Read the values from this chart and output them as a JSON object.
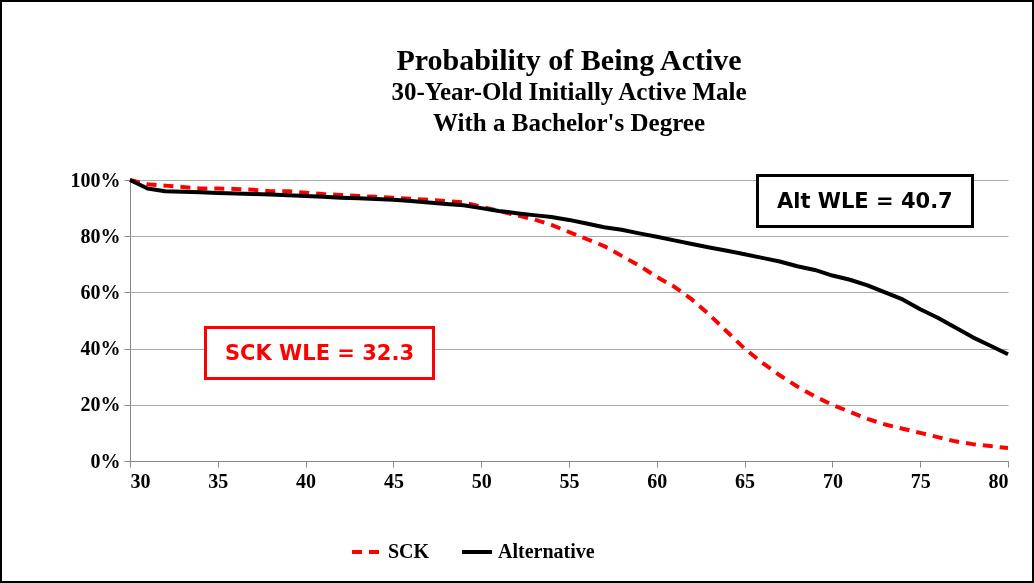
{
  "chart_data": {
    "type": "line",
    "title": "Probability of Being Active",
    "subtitle": "30-Year-Old Initially Active Male\nWith a Bachelor's Degree",
    "x": [
      30,
      31,
      32,
      33,
      34,
      35,
      36,
      37,
      38,
      39,
      40,
      41,
      42,
      43,
      44,
      45,
      46,
      47,
      48,
      49,
      50,
      51,
      52,
      53,
      54,
      55,
      56,
      57,
      58,
      59,
      60,
      61,
      62,
      63,
      64,
      65,
      66,
      67,
      68,
      69,
      70,
      71,
      72,
      73,
      74,
      75,
      76,
      77,
      78,
      79,
      80
    ],
    "series": [
      {
        "name": "SCK",
        "color": "#ff0000",
        "line_style": "dashed",
        "values": [
          100,
          98.5,
          98,
          97.5,
          97,
          97,
          96.8,
          96.5,
          96,
          96,
          95.5,
          95,
          94.7,
          94.3,
          94,
          93.7,
          93.3,
          93,
          92.5,
          92,
          90.5,
          89,
          87.5,
          86,
          84,
          81.5,
          79,
          76.5,
          73,
          69.5,
          65.5,
          62,
          57.5,
          52,
          46,
          40,
          35,
          30.5,
          26.5,
          23,
          20,
          17.5,
          15,
          13,
          11.5,
          10,
          8.5,
          7,
          6,
          5.3,
          4.6
        ]
      },
      {
        "name": "Alternative",
        "color": "#000000",
        "line_style": "solid",
        "values": [
          100,
          97,
          96,
          95.8,
          95.6,
          95.4,
          95.2,
          95,
          94.8,
          94.6,
          94.3,
          94,
          93.7,
          93.5,
          93.2,
          93,
          92.5,
          92,
          91.5,
          91,
          90,
          89,
          88.2,
          87.5,
          86.8,
          85.8,
          84.5,
          83.2,
          82.3,
          81,
          79.8,
          78.5,
          77.2,
          76,
          74.8,
          73.6,
          72.3,
          71,
          69.3,
          68,
          66,
          64.5,
          62.5,
          60,
          57.5,
          54,
          51,
          47.5,
          44,
          41,
          38
        ]
      }
    ],
    "xlim": [
      30,
      80
    ],
    "xticks": [
      30,
      35,
      40,
      45,
      50,
      55,
      60,
      65,
      70,
      75,
      80
    ],
    "ylim": [
      0,
      100
    ],
    "yticks": [
      {
        "value": 0,
        "label": "0%"
      },
      {
        "value": 20,
        "label": "20%"
      },
      {
        "value": 40,
        "label": "40%"
      },
      {
        "value": 60,
        "label": "60%"
      },
      {
        "value": 80,
        "label": "80%"
      },
      {
        "value": 100,
        "label": "100%"
      }
    ],
    "grid": "y",
    "legend": "bottom",
    "marker": "none",
    "annotations": [
      "SCK WLE = 32.3",
      "Alt WLE = 40.7"
    ]
  }
}
